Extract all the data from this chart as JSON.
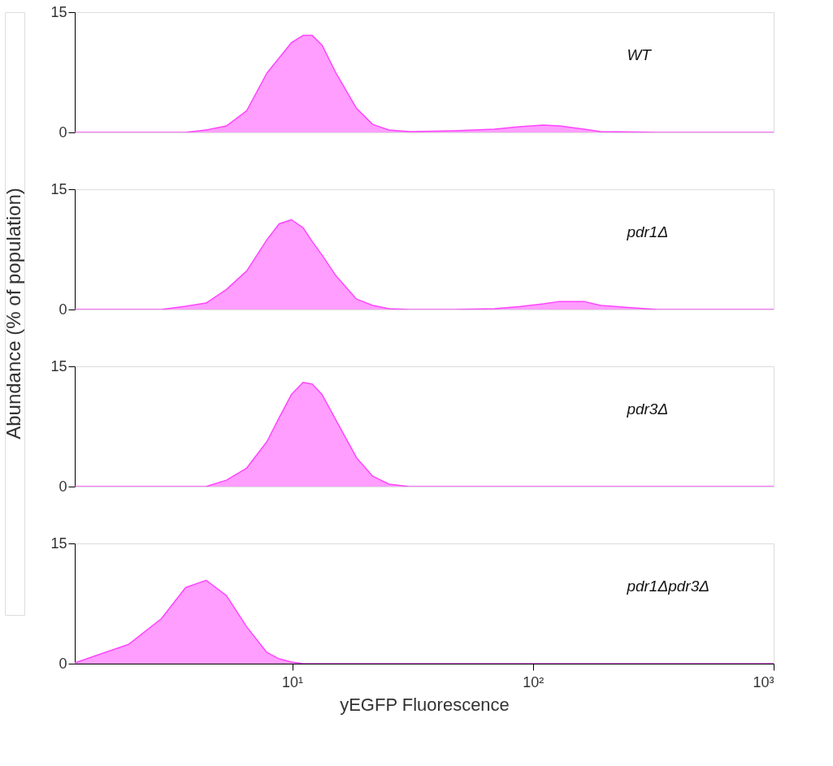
{
  "chart_data": [
    {
      "type": "area",
      "ylabel": "Abundance (% of population)",
      "log": "x",
      "x": [
        1.25,
        2.09,
        2.86,
        3.61,
        4.39,
        5.33,
        6.47,
        7.85,
        8.83,
        9.93,
        11.1,
        12.1,
        13.3,
        15.2,
        18.5,
        21.6,
        25.2,
        30.6,
        47.0,
        69.3,
        87.7,
        110.7,
        129,
        163,
        191,
        329,
        1000
      ],
      "xlim": [
        1.25,
        1000
      ],
      "ylim": [
        0,
        15
      ],
      "yticks": [
        0,
        15
      ],
      "tick_labels": "y",
      "series": [
        {
          "name": "WT",
          "color": "#ff99ff",
          "values": [
            0,
            0,
            0,
            0,
            0.3,
            0.8,
            2.7,
            7.4,
            9.3,
            11.2,
            12.1,
            12.1,
            10.9,
            7.4,
            3.0,
            1.0,
            0.3,
            0.1,
            0.2,
            0.4,
            0.7,
            0.9,
            0.8,
            0.4,
            0.1,
            0,
            0
          ]
        }
      ]
    },
    {
      "type": "area",
      "x": [
        1.25,
        2.09,
        2.86,
        3.61,
        4.39,
        5.33,
        6.47,
        7.85,
        8.83,
        9.93,
        11.1,
        12.1,
        13.3,
        15.2,
        18.5,
        21.6,
        25.2,
        30.6,
        47.0,
        69.3,
        87.7,
        110.7,
        129,
        163,
        191,
        329,
        1000
      ],
      "xlim": [
        1.25,
        1000
      ],
      "ylim": [
        0,
        15
      ],
      "yticks": [
        0,
        15
      ],
      "tick_labels": "y",
      "log": "x",
      "series": [
        {
          "name": "pdr1Δ",
          "color": "#ff99ff",
          "values": [
            0,
            0,
            0,
            0.4,
            0.8,
            2.5,
            4.8,
            8.7,
            10.7,
            11.2,
            10.2,
            8.5,
            6.8,
            4.2,
            1.3,
            0.5,
            0.1,
            0,
            0,
            0.1,
            0.35,
            0.7,
            1.0,
            1.0,
            0.5,
            0,
            0
          ]
        }
      ]
    },
    {
      "type": "area",
      "x": [
        1.25,
        2.09,
        2.86,
        3.61,
        4.39,
        5.33,
        6.47,
        7.85,
        8.83,
        9.93,
        11.1,
        12.1,
        13.3,
        15.2,
        18.5,
        21.6,
        25.2,
        30.6,
        47.0,
        69.3,
        87.7,
        110.7,
        129,
        163,
        191,
        329,
        1000
      ],
      "xlim": [
        1.25,
        1000
      ],
      "ylim": [
        0,
        15
      ],
      "yticks": [
        0,
        15
      ],
      "tick_labels": "y",
      "log": "x",
      "series": [
        {
          "name": "pdr3Δ",
          "color": "#ff99ff",
          "values": [
            0,
            0,
            0,
            0,
            0,
            0.8,
            2.3,
            5.6,
            8.6,
            11.5,
            13.0,
            12.8,
            11.5,
            8.3,
            3.6,
            1.3,
            0.3,
            0,
            0,
            0,
            0,
            0,
            0,
            0,
            0,
            0,
            0
          ]
        }
      ]
    },
    {
      "type": "area",
      "xlabel": "yEGFP Fluorescence",
      "x": [
        1.25,
        2.09,
        2.86,
        3.61,
        4.39,
        5.33,
        6.47,
        7.85,
        8.83,
        9.93,
        11.1,
        12.1,
        13.3,
        15.2,
        18.5,
        21.6,
        25.2,
        30.6,
        47.0,
        69.3,
        87.7,
        110.7,
        129,
        163,
        191,
        329,
        1000
      ],
      "xlim": [
        1.25,
        1000
      ],
      "ylim": [
        0,
        15
      ],
      "yticks": [
        0,
        15
      ],
      "xticks": [
        {
          "value": 10,
          "label": "10¹"
        },
        {
          "value": 100,
          "label": "10²"
        },
        {
          "value": 1000,
          "label": "10³"
        }
      ],
      "log": "x",
      "series": [
        {
          "name": "pdr1Δpdr3Δ",
          "color": "#ff99ff",
          "values": [
            0.1,
            2.4,
            5.6,
            9.5,
            10.4,
            8.5,
            4.6,
            1.4,
            0.6,
            0.2,
            0,
            0,
            0,
            0,
            0,
            0,
            0,
            0,
            0,
            0,
            0,
            0,
            0,
            0,
            0,
            0,
            0
          ]
        }
      ]
    }
  ]
}
